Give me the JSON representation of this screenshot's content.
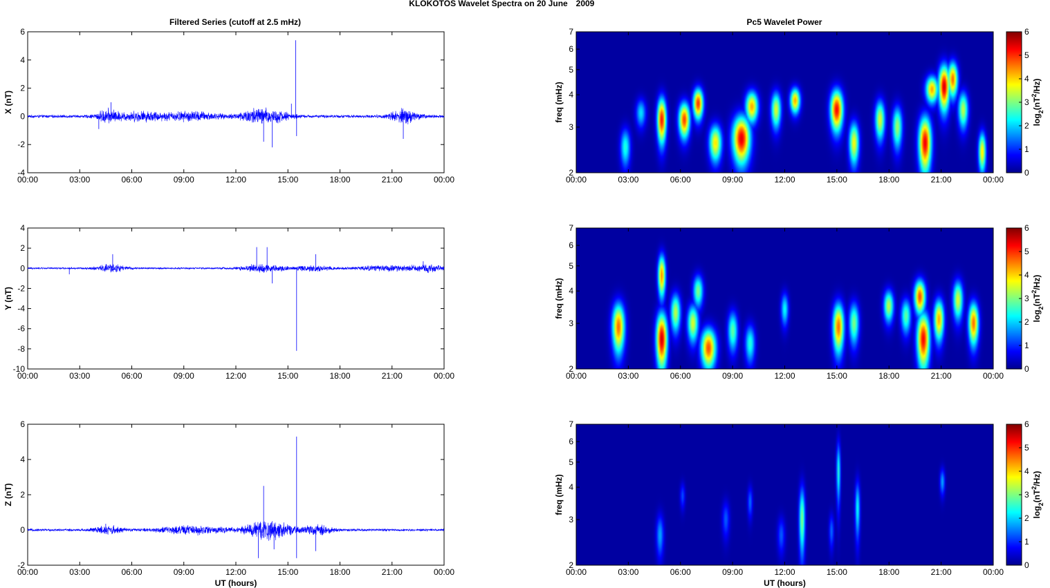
{
  "figure": {
    "suptitle_main": "KLOKOTOS Wavelet Spectra on 20 June",
    "suptitle_year": "2009",
    "left_title": "Filtered Series (cutoff at 2.5 mHz)",
    "right_title": "Pc5 Wavelet Power",
    "xlabel": "UT (hours)",
    "time_ticks": [
      "00:00",
      "03:00",
      "06:00",
      "09:00",
      "12:00",
      "15:00",
      "18:00",
      "21:00",
      "00:00"
    ],
    "freq_label": "freq (mHz)",
    "freq_ticks": [
      "2",
      "3",
      "4",
      "5",
      "6",
      "7"
    ],
    "colorbar_ticks": [
      "0",
      "1",
      "2",
      "3",
      "4",
      "5",
      "6"
    ],
    "colorbar_label_prefix": "log",
    "colorbar_label_sub": "2",
    "colorbar_label_mid": "(nT",
    "colorbar_label_sup": "2",
    "colorbar_label_suffix": "/Hz)",
    "colors": {
      "trace": "#0000ff",
      "axes": "#000000",
      "colormap": [
        "#00008f",
        "#0000ff",
        "#00ffff",
        "#ffff00",
        "#ff0000",
        "#800000"
      ]
    }
  },
  "chart_data": [
    {
      "type": "line",
      "name": "X",
      "ylabel": "X (nT)",
      "yticks": [
        "6",
        "4",
        "2",
        "0",
        "-2",
        "-4"
      ],
      "ylim": [
        -4,
        6
      ],
      "xlim": [
        0,
        24
      ],
      "x_unit": "UT hours",
      "noise_level": 0.12,
      "bursts": [
        {
          "t": 4.6,
          "amp": 0.45,
          "width": 0.6
        },
        {
          "t": 6.5,
          "amp": 0.35,
          "width": 1.5
        },
        {
          "t": 9.5,
          "amp": 0.35,
          "width": 1.5
        },
        {
          "t": 13.2,
          "amp": 0.6,
          "width": 1.0
        },
        {
          "t": 14.5,
          "amp": 0.3,
          "width": 0.8
        },
        {
          "t": 21.7,
          "amp": 0.55,
          "width": 0.8
        }
      ],
      "spikes": [
        {
          "t": 15.45,
          "v": 5.4
        },
        {
          "t": 13.6,
          "v": -1.8
        },
        {
          "t": 14.1,
          "v": -2.2
        },
        {
          "t": 15.5,
          "v": -1.4
        },
        {
          "t": 21.65,
          "v": -1.6
        },
        {
          "t": 4.8,
          "v": 1.0
        },
        {
          "t": 4.1,
          "v": -0.9
        },
        {
          "t": 15.2,
          "v": 0.9
        }
      ]
    },
    {
      "type": "line",
      "name": "Y",
      "ylabel": "Y (nT)",
      "yticks": [
        "4",
        "2",
        "0",
        "-2",
        "-4",
        "-6",
        "-8",
        "-10"
      ],
      "ylim": [
        -10,
        4
      ],
      "xlim": [
        0,
        24
      ],
      "x_unit": "UT hours",
      "noise_level": 0.1,
      "bursts": [
        {
          "t": 4.8,
          "amp": 0.45,
          "width": 0.8
        },
        {
          "t": 13.5,
          "amp": 0.45,
          "width": 1.2
        },
        {
          "t": 16.5,
          "amp": 0.3,
          "width": 1.2
        },
        {
          "t": 20.5,
          "amp": 0.3,
          "width": 1.5
        },
        {
          "t": 23.0,
          "amp": 0.35,
          "width": 1.0
        }
      ],
      "spikes": [
        {
          "t": 15.5,
          "v": -8.2
        },
        {
          "t": 13.2,
          "v": 2.1
        },
        {
          "t": 13.8,
          "v": 2.1
        },
        {
          "t": 14.1,
          "v": -1.5
        },
        {
          "t": 4.9,
          "v": 1.4
        },
        {
          "t": 2.4,
          "v": -0.6
        },
        {
          "t": 16.6,
          "v": 1.4
        },
        {
          "t": 22.8,
          "v": 0.7
        }
      ]
    },
    {
      "type": "line",
      "name": "Z",
      "ylabel": "Z (nT)",
      "yticks": [
        "6",
        "4",
        "2",
        "0",
        "-2"
      ],
      "ylim": [
        -2,
        6
      ],
      "xlim": [
        0,
        24
      ],
      "x_unit": "UT hours",
      "noise_level": 0.08,
      "bursts": [
        {
          "t": 4.6,
          "amp": 0.25,
          "width": 0.8
        },
        {
          "t": 9.5,
          "amp": 0.25,
          "width": 2.0
        },
        {
          "t": 13.5,
          "amp": 0.5,
          "width": 1.0
        },
        {
          "t": 14.5,
          "amp": 0.3,
          "width": 1.0
        },
        {
          "t": 16.7,
          "amp": 0.3,
          "width": 0.8
        }
      ],
      "spikes": [
        {
          "t": 15.5,
          "v": 5.3
        },
        {
          "t": 13.6,
          "v": 2.5
        },
        {
          "t": 15.5,
          "v": -1.6
        },
        {
          "t": 13.3,
          "v": -1.6
        },
        {
          "t": 14.2,
          "v": -1.1
        },
        {
          "t": 16.6,
          "v": -1.2
        },
        {
          "t": 4.5,
          "v": 0.35
        }
      ]
    },
    {
      "type": "heatmap",
      "name": "X wavelet power",
      "ylabel": "freq (mHz)",
      "xlim": [
        0,
        24
      ],
      "ylim": [
        2,
        7
      ],
      "y_scale": "log",
      "clim": [
        0,
        6
      ],
      "background": 0,
      "blobs": [
        {
          "t": 4.9,
          "f": 3.2,
          "power": 5.6,
          "dt": 0.18,
          "df": 0.45
        },
        {
          "t": 6.2,
          "f": 3.2,
          "power": 5.3,
          "dt": 0.22,
          "df": 0.35
        },
        {
          "t": 7.0,
          "f": 3.7,
          "power": 5.4,
          "dt": 0.2,
          "df": 0.35
        },
        {
          "t": 8.0,
          "f": 2.6,
          "power": 4.2,
          "dt": 0.25,
          "df": 0.3
        },
        {
          "t": 9.5,
          "f": 2.7,
          "power": 5.9,
          "dt": 0.35,
          "df": 0.4
        },
        {
          "t": 10.1,
          "f": 3.6,
          "power": 4.6,
          "dt": 0.25,
          "df": 0.35
        },
        {
          "t": 11.5,
          "f": 3.5,
          "power": 3.8,
          "dt": 0.2,
          "df": 0.4
        },
        {
          "t": 12.6,
          "f": 3.8,
          "power": 4.6,
          "dt": 0.2,
          "df": 0.3
        },
        {
          "t": 15.0,
          "f": 3.5,
          "power": 5.7,
          "dt": 0.25,
          "df": 0.45
        },
        {
          "t": 16.0,
          "f": 2.6,
          "power": 4.0,
          "dt": 0.2,
          "df": 0.35
        },
        {
          "t": 17.5,
          "f": 3.2,
          "power": 3.8,
          "dt": 0.2,
          "df": 0.4
        },
        {
          "t": 18.5,
          "f": 3.0,
          "power": 3.4,
          "dt": 0.2,
          "df": 0.4
        },
        {
          "t": 20.1,
          "f": 2.6,
          "power": 5.8,
          "dt": 0.25,
          "df": 0.45
        },
        {
          "t": 20.5,
          "f": 4.2,
          "power": 4.6,
          "dt": 0.25,
          "df": 0.35
        },
        {
          "t": 21.2,
          "f": 4.3,
          "power": 6.0,
          "dt": 0.22,
          "df": 0.6
        },
        {
          "t": 21.7,
          "f": 4.6,
          "power": 5.0,
          "dt": 0.2,
          "df": 0.5
        },
        {
          "t": 22.3,
          "f": 3.5,
          "power": 3.6,
          "dt": 0.2,
          "df": 0.4
        },
        {
          "t": 23.4,
          "f": 2.4,
          "power": 4.2,
          "dt": 0.15,
          "df": 0.3
        },
        {
          "t": 2.8,
          "f": 2.5,
          "power": 2.6,
          "dt": 0.2,
          "df": 0.3
        },
        {
          "t": 3.7,
          "f": 3.4,
          "power": 2.2,
          "dt": 0.2,
          "df": 0.3
        }
      ]
    },
    {
      "type": "heatmap",
      "name": "Y wavelet power",
      "ylabel": "freq (mHz)",
      "xlim": [
        0,
        24
      ],
      "ylim": [
        2,
        7
      ],
      "y_scale": "log",
      "clim": [
        0,
        6
      ],
      "background": 0,
      "blobs": [
        {
          "t": 2.4,
          "f": 2.9,
          "power": 5.0,
          "dt": 0.25,
          "df": 0.45
        },
        {
          "t": 4.9,
          "f": 2.6,
          "power": 6.0,
          "dt": 0.22,
          "df": 0.45
        },
        {
          "t": 4.9,
          "f": 4.6,
          "power": 4.8,
          "dt": 0.15,
          "df": 0.6
        },
        {
          "t": 5.7,
          "f": 3.3,
          "power": 3.6,
          "dt": 0.2,
          "df": 0.4
        },
        {
          "t": 6.7,
          "f": 3.0,
          "power": 3.8,
          "dt": 0.22,
          "df": 0.35
        },
        {
          "t": 7.6,
          "f": 2.4,
          "power": 5.2,
          "dt": 0.3,
          "df": 0.3
        },
        {
          "t": 7.0,
          "f": 4.0,
          "power": 3.2,
          "dt": 0.2,
          "df": 0.4
        },
        {
          "t": 9.0,
          "f": 2.8,
          "power": 3.0,
          "dt": 0.2,
          "df": 0.35
        },
        {
          "t": 10.0,
          "f": 2.5,
          "power": 2.6,
          "dt": 0.2,
          "df": 0.3
        },
        {
          "t": 12.0,
          "f": 3.4,
          "power": 2.4,
          "dt": 0.15,
          "df": 0.35
        },
        {
          "t": 15.1,
          "f": 2.9,
          "power": 5.0,
          "dt": 0.22,
          "df": 0.45
        },
        {
          "t": 16.0,
          "f": 3.0,
          "power": 3.2,
          "dt": 0.2,
          "df": 0.4
        },
        {
          "t": 18.0,
          "f": 3.5,
          "power": 3.6,
          "dt": 0.2,
          "df": 0.35
        },
        {
          "t": 19.0,
          "f": 3.2,
          "power": 3.0,
          "dt": 0.2,
          "df": 0.35
        },
        {
          "t": 20.0,
          "f": 2.6,
          "power": 5.7,
          "dt": 0.25,
          "df": 0.45
        },
        {
          "t": 19.8,
          "f": 3.8,
          "power": 5.2,
          "dt": 0.22,
          "df": 0.4
        },
        {
          "t": 20.9,
          "f": 3.1,
          "power": 4.6,
          "dt": 0.2,
          "df": 0.4
        },
        {
          "t": 22.0,
          "f": 3.7,
          "power": 3.8,
          "dt": 0.2,
          "df": 0.45
        },
        {
          "t": 22.9,
          "f": 3.0,
          "power": 5.0,
          "dt": 0.2,
          "df": 0.4
        }
      ]
    },
    {
      "type": "heatmap",
      "name": "Z wavelet power",
      "ylabel": "freq (mHz)",
      "xlim": [
        0,
        24
      ],
      "ylim": [
        2,
        7
      ],
      "y_scale": "log",
      "clim": [
        0,
        6
      ],
      "background": 0,
      "blobs": [
        {
          "t": 4.8,
          "f": 2.6,
          "power": 1.8,
          "dt": 0.15,
          "df": 0.35
        },
        {
          "t": 6.1,
          "f": 3.7,
          "power": 1.2,
          "dt": 0.1,
          "df": 0.3
        },
        {
          "t": 8.6,
          "f": 3.0,
          "power": 1.3,
          "dt": 0.15,
          "df": 0.35
        },
        {
          "t": 10.0,
          "f": 3.5,
          "power": 1.4,
          "dt": 0.1,
          "df": 0.35
        },
        {
          "t": 11.8,
          "f": 2.6,
          "power": 1.3,
          "dt": 0.15,
          "df": 0.3
        },
        {
          "t": 13.0,
          "f": 3.0,
          "power": 3.2,
          "dt": 0.12,
          "df": 0.65
        },
        {
          "t": 14.7,
          "f": 2.7,
          "power": 1.4,
          "dt": 0.1,
          "df": 0.3
        },
        {
          "t": 15.1,
          "f": 4.6,
          "power": 2.6,
          "dt": 0.08,
          "df": 0.9
        },
        {
          "t": 16.2,
          "f": 3.3,
          "power": 2.4,
          "dt": 0.1,
          "df": 0.6
        },
        {
          "t": 21.1,
          "f": 4.2,
          "power": 1.8,
          "dt": 0.1,
          "df": 0.35
        }
      ]
    }
  ]
}
